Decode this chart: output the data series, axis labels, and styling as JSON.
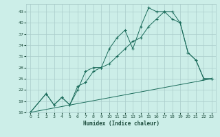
{
  "xlabel": "Humidex (Indice chaleur)",
  "bg_color": "#cceee8",
  "grid_color": "#aaccca",
  "line_color": "#1a6b5a",
  "ylim": [
    16,
    45
  ],
  "xlim": [
    -0.5,
    23.5
  ],
  "yticks": [
    16,
    19,
    22,
    25,
    28,
    31,
    34,
    37,
    40,
    43
  ],
  "xticks": [
    0,
    1,
    2,
    3,
    4,
    5,
    6,
    7,
    8,
    9,
    10,
    11,
    12,
    13,
    14,
    15,
    16,
    17,
    18,
    19,
    20,
    21,
    22,
    23
  ],
  "series": [
    {
      "x": [
        0,
        2,
        3,
        4,
        5,
        6,
        7,
        8,
        9,
        10,
        11,
        12,
        13,
        14,
        15,
        16,
        17,
        18,
        19,
        20,
        21,
        22,
        23
      ],
      "y": [
        16,
        21,
        18,
        20,
        18,
        22,
        27,
        28,
        28,
        33,
        36,
        38,
        33,
        39,
        44,
        43,
        43,
        41,
        40,
        32,
        30,
        25,
        25
      ],
      "with_marker": true
    },
    {
      "x": [
        0,
        2,
        3,
        4,
        5,
        6,
        7,
        8,
        9,
        10,
        11,
        12,
        13,
        14,
        15,
        16,
        17,
        18,
        19,
        20,
        21,
        22,
        23
      ],
      "y": [
        16,
        21,
        18,
        20,
        18,
        23,
        24,
        27,
        28,
        29,
        31,
        33,
        35,
        36,
        39,
        41,
        43,
        43,
        40,
        32,
        30,
        25,
        25
      ],
      "with_marker": true
    },
    {
      "x": [
        0,
        23
      ],
      "y": [
        16,
        25
      ],
      "with_marker": false
    }
  ]
}
